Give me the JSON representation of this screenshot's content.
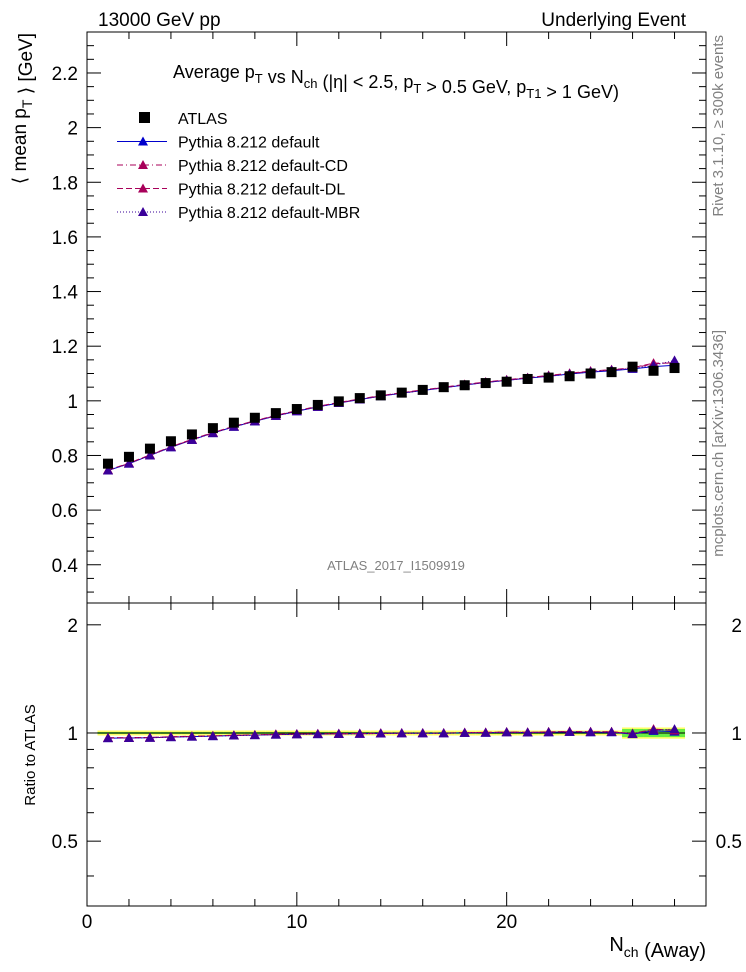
{
  "header": {
    "left": "13000 GeV pp",
    "right": "Underlying Event"
  },
  "side": {
    "rivet": "Rivet 3.1.10, ≥ 300k events",
    "mcplots": "mcplots.cern.ch [arXiv:1306.3436]"
  },
  "chart_data": {
    "type": "scatter",
    "title": "Average p_T vs N_ch (|η| < 2.5, p_T > 0.5 GeV, p_T1 > 1 GeV)",
    "watermark": "ATLAS_2017_I1509919",
    "xlabel": "N_ch (Away)",
    "ylabel": "⟨ mean p_T ⟩ [GeV]",
    "ratio_ylabel": "Ratio to ATLAS",
    "xlim": [
      0,
      29.5
    ],
    "ylim": [
      0.26,
      2.35
    ],
    "ratio_ylim": [
      0.33,
      2.3
    ],
    "x_ticks": [
      "0",
      "10",
      "20"
    ],
    "y_ticks": [
      "0.4",
      "0.6",
      "0.8",
      "1",
      "1.2",
      "1.4",
      "1.6",
      "1.8",
      "2",
      "2.2"
    ],
    "ratio_ticks": [
      "0.5",
      "1",
      "2"
    ],
    "x": [
      1,
      2,
      3,
      4,
      5,
      6,
      7,
      8,
      9,
      10,
      11,
      12,
      13,
      14,
      15,
      16,
      17,
      18,
      19,
      20,
      21,
      22,
      23,
      24,
      25,
      26,
      27,
      28
    ],
    "data": {
      "name": "ATLAS",
      "color": "#000000",
      "values": [
        0.77,
        0.795,
        0.825,
        0.852,
        0.877,
        0.9,
        0.92,
        0.938,
        0.955,
        0.97,
        0.985,
        0.998,
        1.01,
        1.02,
        1.03,
        1.04,
        1.05,
        1.057,
        1.065,
        1.07,
        1.08,
        1.085,
        1.09,
        1.1,
        1.105,
        1.125,
        1.11,
        1.12
      ]
    },
    "series": [
      {
        "name": "Pythia 8.212 default",
        "color": "#0000cc",
        "dash": "solid",
        "values": [
          0.745,
          0.77,
          0.8,
          0.83,
          0.857,
          0.882,
          0.905,
          0.925,
          0.945,
          0.962,
          0.978,
          0.992,
          1.005,
          1.017,
          1.028,
          1.038,
          1.048,
          1.058,
          1.067,
          1.075,
          1.083,
          1.09,
          1.098,
          1.105,
          1.11,
          1.117,
          1.125,
          1.13
        ]
      },
      {
        "name": "Pythia 8.212 default-CD",
        "color": "#a8005a",
        "dash": "dashdot",
        "values": [
          0.746,
          0.771,
          0.801,
          0.831,
          0.858,
          0.883,
          0.906,
          0.926,
          0.946,
          0.963,
          0.979,
          0.993,
          1.006,
          1.018,
          1.029,
          1.039,
          1.049,
          1.059,
          1.068,
          1.076,
          1.084,
          1.092,
          1.1,
          1.108,
          1.113,
          1.12,
          1.135,
          1.14
        ]
      },
      {
        "name": "Pythia 8.212 default-DL",
        "color": "#a8005a",
        "dash": "dashed",
        "values": [
          0.747,
          0.772,
          0.802,
          0.832,
          0.859,
          0.884,
          0.907,
          0.927,
          0.947,
          0.964,
          0.98,
          0.994,
          1.007,
          1.019,
          1.03,
          1.04,
          1.05,
          1.06,
          1.069,
          1.077,
          1.085,
          1.093,
          1.101,
          1.109,
          1.114,
          1.121,
          1.138,
          1.138
        ]
      },
      {
        "name": "Pythia 8.212 default-MBR",
        "color": "#3a0099",
        "dash": "dotted",
        "values": [
          0.745,
          0.77,
          0.8,
          0.83,
          0.857,
          0.882,
          0.905,
          0.925,
          0.945,
          0.962,
          0.978,
          0.992,
          1.005,
          1.017,
          1.028,
          1.038,
          1.048,
          1.058,
          1.067,
          1.075,
          1.083,
          1.09,
          1.098,
          1.106,
          1.112,
          1.118,
          1.13,
          1.148
        ]
      }
    ],
    "legend_position": "top-left"
  }
}
